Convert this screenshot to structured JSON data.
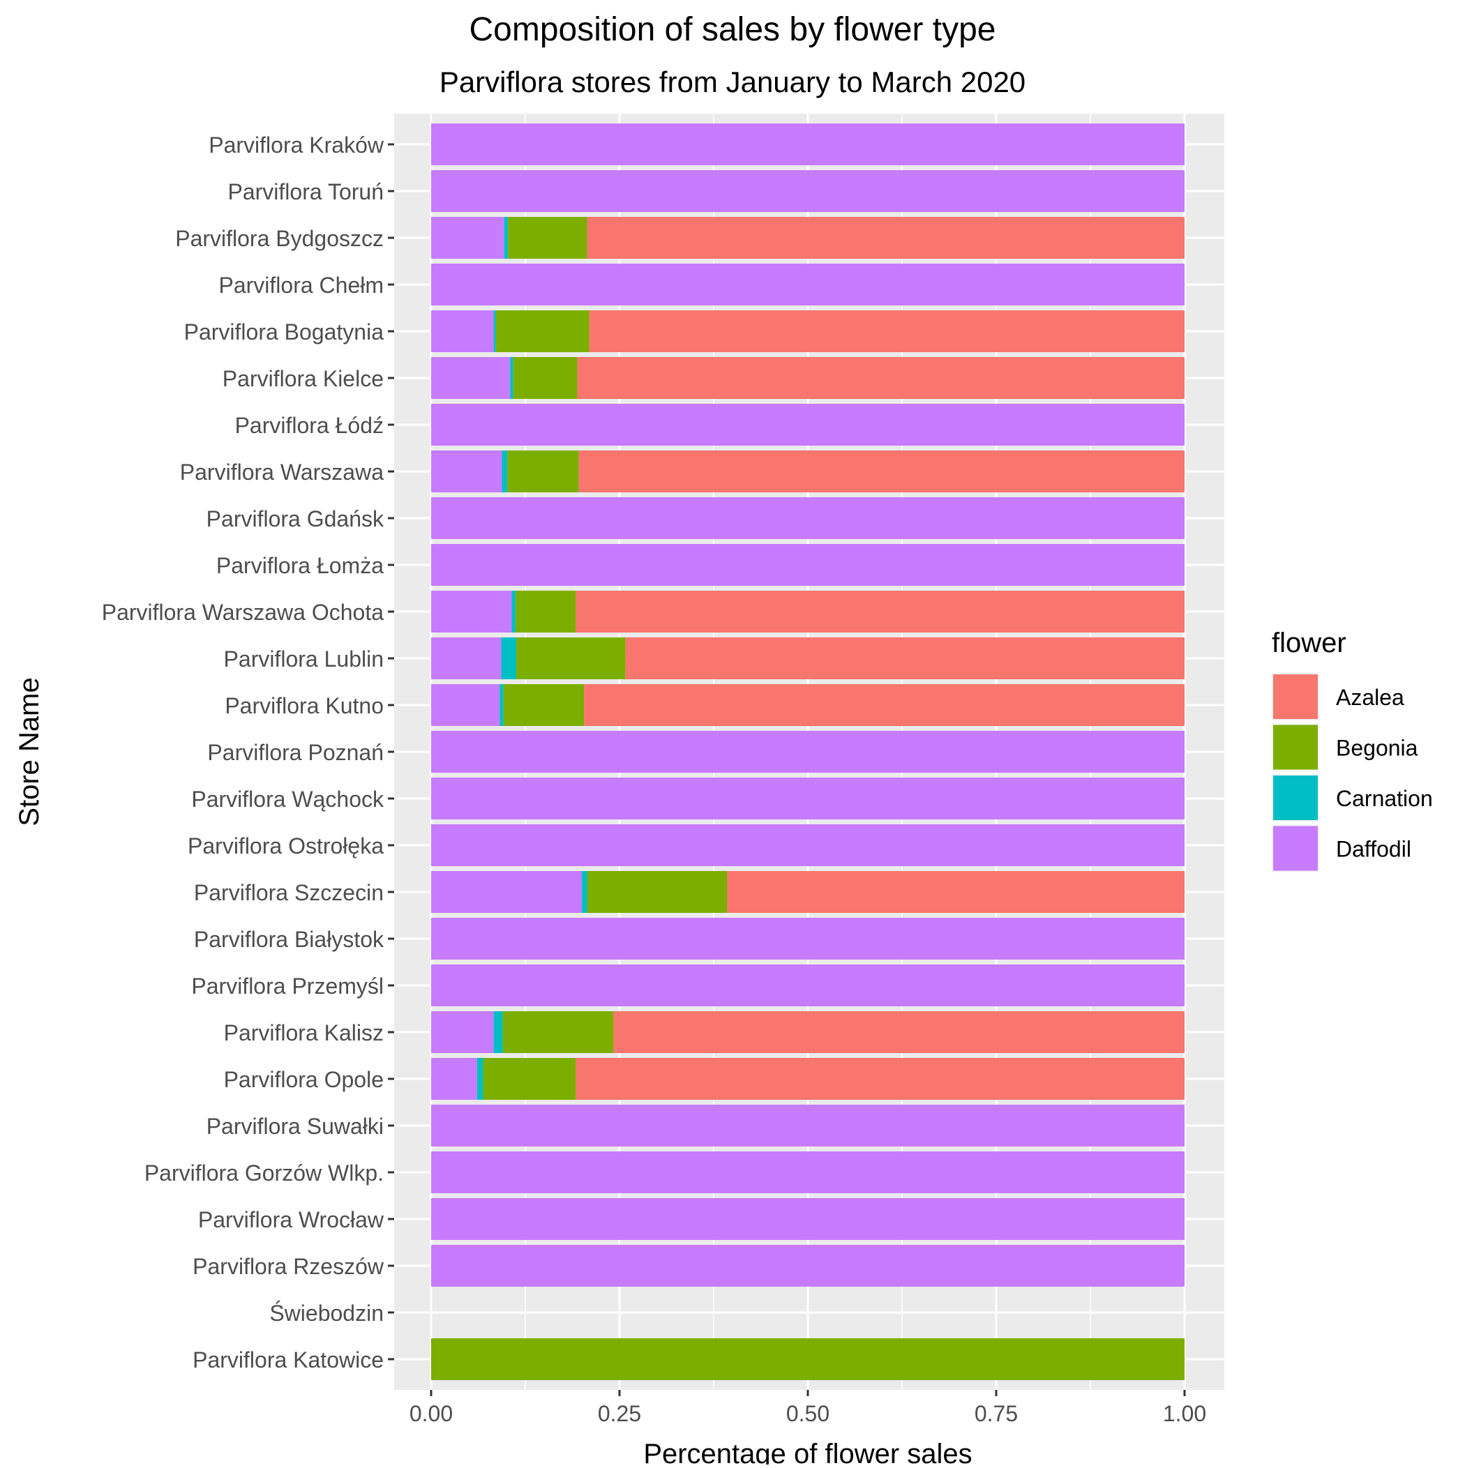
{
  "chart_data": {
    "type": "bar",
    "orientation": "horizontal",
    "stacked": true,
    "title": "Composition of sales by flower type",
    "subtitle": "Parviflora stores from January to March 2020",
    "xlabel": "Percentage of flower sales",
    "ylabel": "Store Name",
    "xlim": [
      0,
      1.05
    ],
    "x_ticks": [
      0,
      0.25,
      0.5,
      0.75,
      1
    ],
    "x_tick_labels": [
      "0.00",
      "0.25",
      "0.50",
      "0.75",
      "1.00"
    ],
    "grid": true,
    "legend": {
      "title": "flower",
      "position": "right",
      "entries": [
        "Azalea",
        "Begonia",
        "Carnation",
        "Daffodil"
      ]
    },
    "colors": {
      "Azalea": "#F8766D",
      "Begonia": "#7CAE00",
      "Carnation": "#00BFC4",
      "Daffodil": "#C77CFF"
    },
    "stack_order": [
      "Daffodil",
      "Carnation",
      "Begonia",
      "Azalea"
    ],
    "categories": [
      "Parviflora Kraków",
      "Parviflora Toruń",
      "Parviflora Bydgoszcz",
      "Parviflora Chełm",
      "Parviflora Bogatynia",
      "Parviflora Kielce",
      "Parviflora Łódź",
      "Parviflora Warszawa",
      "Parviflora Gdańsk",
      "Parviflora Łomża",
      "Parviflora Warszawa Ochota",
      "Parviflora Lublin",
      "Parviflora Kutno",
      "Parviflora Poznań",
      "Parviflora Wąchock",
      "Parviflora Ostrołęka",
      "Parviflora Szczecin",
      "Parviflora Białystok",
      "Parviflora Przemyśl",
      "Parviflora Kalisz",
      "Parviflora Opole",
      "Parviflora Suwałki",
      "Parviflora Gorzów Wlkp.",
      "Parviflora Wrocław",
      "Parviflora Rzeszów",
      "Świebodzin",
      "Parviflora Katowice"
    ],
    "series": [
      {
        "name": "Daffodil",
        "values": [
          1,
          1,
          0.097,
          1,
          0.083,
          0.105,
          1,
          0.094,
          1,
          1,
          0.107,
          0.093,
          0.091,
          1,
          1,
          1,
          0.2,
          1,
          1,
          0.083,
          0.061,
          1,
          1,
          1,
          1,
          0,
          0
        ]
      },
      {
        "name": "Carnation",
        "values": [
          0,
          0,
          0.005,
          0,
          0.003,
          0.004,
          0,
          0.007,
          0,
          0,
          0.005,
          0.02,
          0.005,
          0,
          0,
          0,
          0.007,
          0,
          0,
          0.012,
          0.008,
          0,
          0,
          0,
          0,
          0,
          0
        ]
      },
      {
        "name": "Begonia",
        "values": [
          0,
          0,
          0.105,
          0,
          0.124,
          0.085,
          0,
          0.095,
          0,
          0,
          0.08,
          0.145,
          0.107,
          0,
          0,
          0,
          0.186,
          0,
          0,
          0.147,
          0.123,
          0,
          0,
          0,
          0,
          0,
          1
        ]
      },
      {
        "name": "Azalea",
        "values": [
          0,
          0,
          0.793,
          0,
          0.79,
          0.806,
          0,
          0.804,
          0,
          0,
          0.808,
          0.742,
          0.797,
          0,
          0,
          0,
          0.607,
          0,
          0,
          0.758,
          0.808,
          0,
          0,
          0,
          0,
          0,
          0
        ]
      }
    ]
  }
}
